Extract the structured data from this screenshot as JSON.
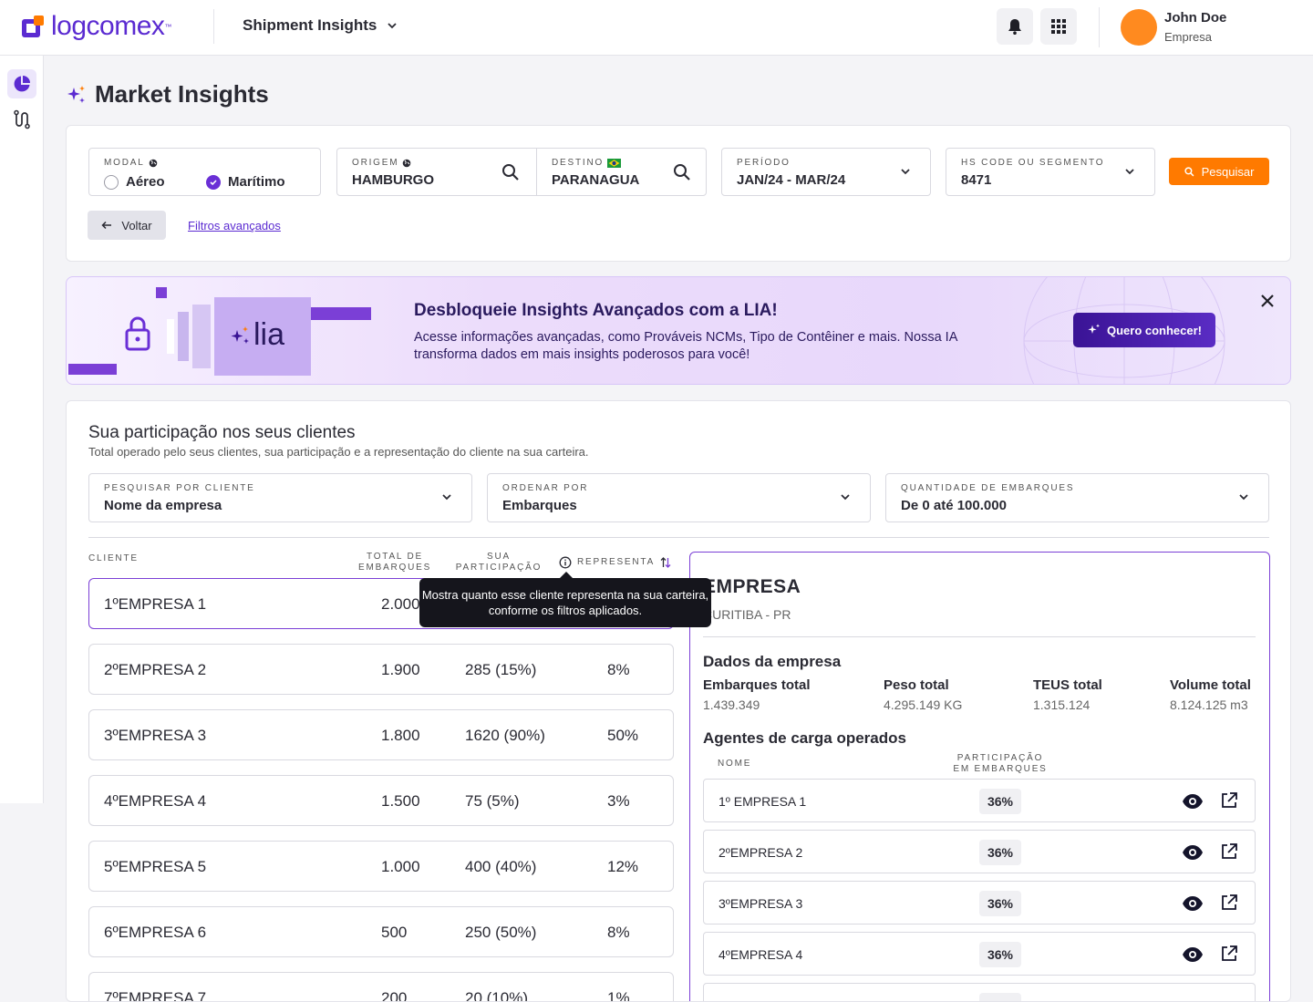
{
  "header": {
    "logo_text": "logcomex",
    "logo_tm": "™",
    "app_switch_label": "Shipment Insights",
    "user": {
      "name": "John Doe",
      "company": "Empresa"
    }
  },
  "page": {
    "title": "Market Insights"
  },
  "filters": {
    "modal": {
      "label": "MODAL",
      "options": [
        "Aéreo",
        "Marítimo"
      ],
      "selected": "Marítimo"
    },
    "origem": {
      "label": "ORIGEM",
      "value": "HAMBURGO"
    },
    "destino": {
      "label": "DESTINO",
      "value": "PARANAGUA"
    },
    "periodo": {
      "label": "PERÍODO",
      "value": "JAN/24 - MAR/24"
    },
    "hs_code": {
      "label": "HS CODE OU SEGMENTO",
      "value": "8471"
    },
    "search_button": "Pesquisar",
    "back_button": "Voltar",
    "advanced_link": "Filtros avançados"
  },
  "banner": {
    "logo_text": "lia",
    "title": "Desbloqueie Insights Avançados com a LIA!",
    "text": "Acesse informações avançadas, como Prováveis NCMs, Tipo de Contêiner e mais. Nossa IA transforma dados em mais insights poderosos para você!",
    "cta": "Quero conhecer!"
  },
  "clients": {
    "title": "Sua participação nos seus clientes",
    "subtitle": "Total operado pelo seus clientes, sua participação e a representação do cliente na sua carteira.",
    "filters": [
      {
        "label": "PESQUISAR POR CLIENTE",
        "value": "Nome da empresa"
      },
      {
        "label": "ORDENAR POR",
        "value": "Embarques"
      },
      {
        "label": "QUANTIDADE DE EMBARQUES",
        "value": "De 0 até 100.000"
      }
    ],
    "columns": {
      "cliente": "CLIENTE",
      "total_1": "TOTAL DE",
      "total_2": "EMBARQUES",
      "part_1": "SUA",
      "part_2": "PARTICIPAÇÃO",
      "representa": "REPRESENTA"
    },
    "tooltip": "Mostra quanto esse cliente representa na sua carteira, conforme os filtros aplicados.",
    "rows": [
      {
        "name": "1ºEMPRESA 1",
        "total": "2.000",
        "part": "",
        "rep": ""
      },
      {
        "name": "2ºEMPRESA 2",
        "total": "1.900",
        "part": "285 (15%)",
        "rep": "8%"
      },
      {
        "name": "3ºEMPRESA 3",
        "total": "1.800",
        "part": "1620 (90%)",
        "rep": "50%"
      },
      {
        "name": "4ºEMPRESA 4",
        "total": "1.500",
        "part": "75 (5%)",
        "rep": "3%"
      },
      {
        "name": "5ºEMPRESA 5",
        "total": "1.000",
        "part": "400 (40%)",
        "rep": "12%"
      },
      {
        "name": "6ºEMPRESA 6",
        "total": "500",
        "part": "250 (50%)",
        "rep": "8%"
      },
      {
        "name": "7ºEMPRESA 7",
        "total": "200",
        "part": "20 (10%)",
        "rep": "1%"
      }
    ]
  },
  "detail": {
    "name": "EMPRESA",
    "location": "CURITIBA - PR",
    "company_heading": "Dados da empresa",
    "stats": [
      {
        "label": "Embarques total",
        "value": "1.439.349"
      },
      {
        "label": "Peso total",
        "value": "4.295.149 KG"
      },
      {
        "label": "TEUS total",
        "value": "1.315.124"
      },
      {
        "label": "Volume total",
        "value": "8.124.125 m3"
      }
    ],
    "agents_heading": "Agentes de carga operados",
    "agents_columns": {
      "nome": "NOME",
      "part_1": "PARTICIPAÇÃO",
      "part_2": "EM EMBARQUES"
    },
    "agents": [
      {
        "name": "1º EMPRESA 1",
        "pct": "36%"
      },
      {
        "name": "2ºEMPRESA 2",
        "pct": "36%"
      },
      {
        "name": "3ºEMPRESA 3",
        "pct": "36%"
      },
      {
        "name": "4ºEMPRESA 4",
        "pct": "36%"
      },
      {
        "name": "",
        "pct": ""
      }
    ]
  },
  "colors": {
    "brand": "#5b2bd1",
    "accent": "#ff7a00",
    "selected_border": "#7b3fd6"
  }
}
